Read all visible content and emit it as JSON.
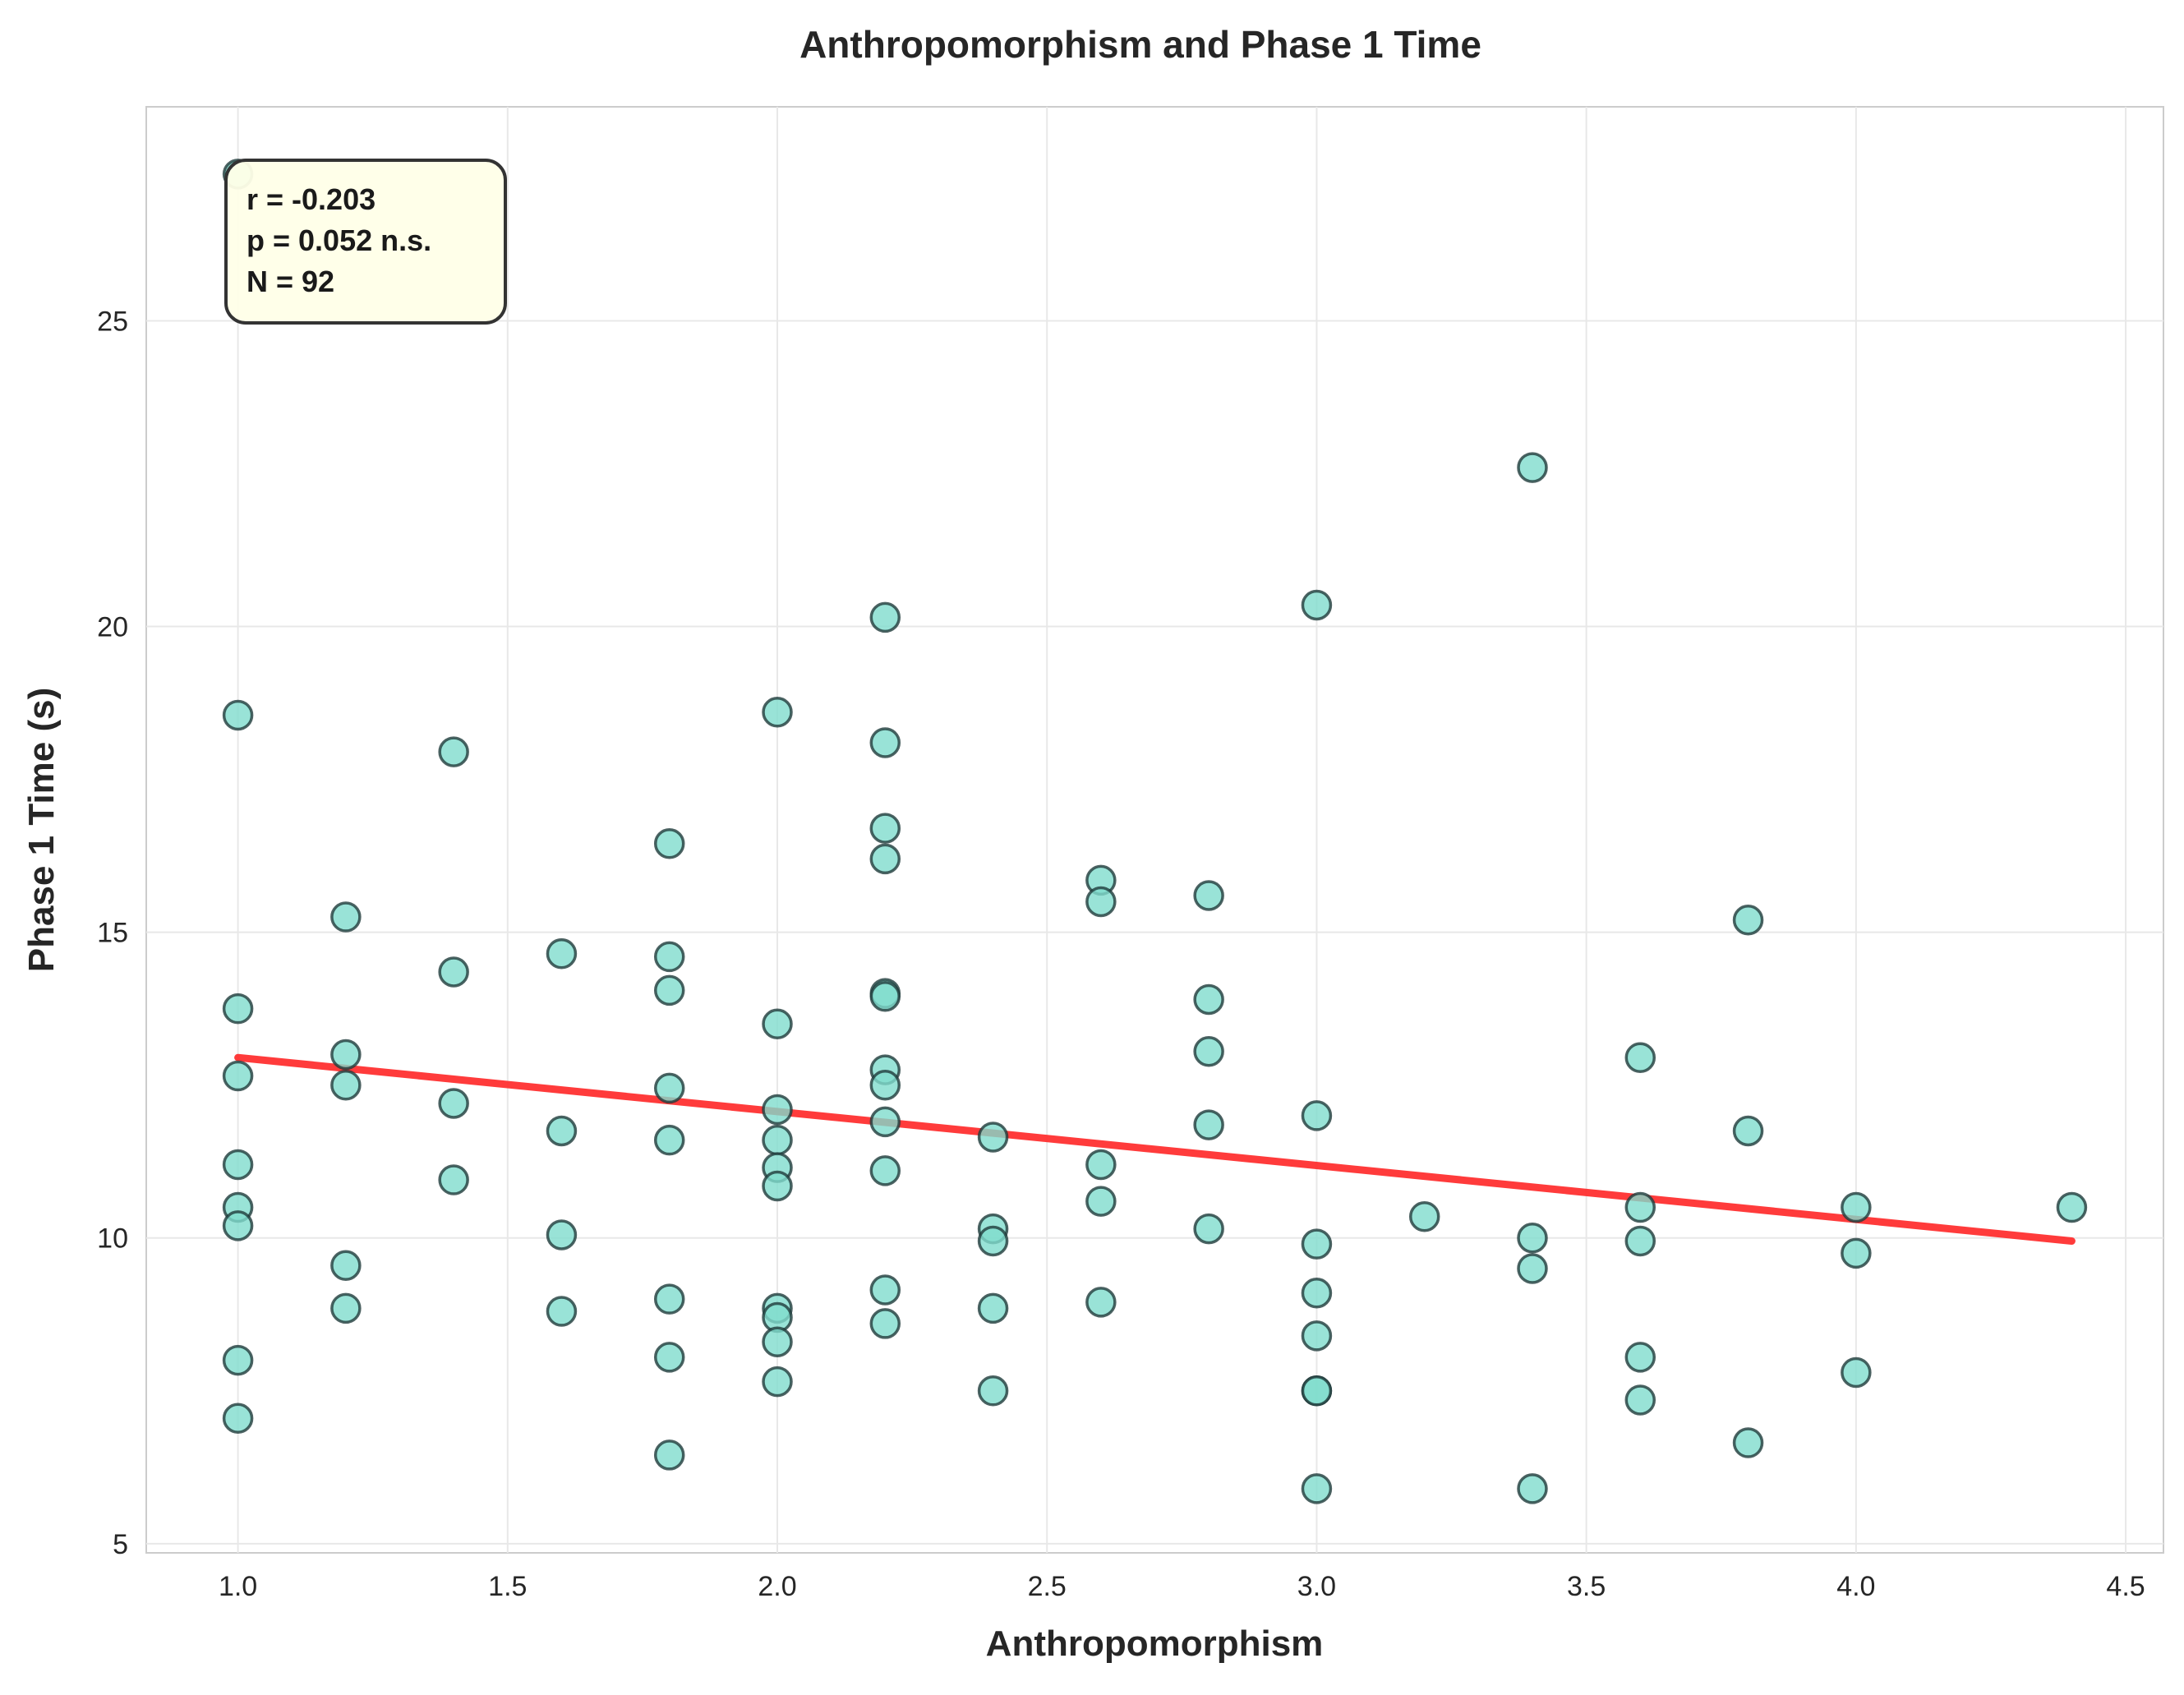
{
  "chart_data": {
    "type": "scatter",
    "title": "Anthropomorphism and Phase 1 Time",
    "xlabel": "Anthropomorphism",
    "ylabel": "Phase 1 Time (s)",
    "xlim": [
      0.83,
      4.57
    ],
    "ylim": [
      4.85,
      28.5
    ],
    "xticks": [
      "1.0",
      "1.5",
      "2.0",
      "2.5",
      "3.0",
      "3.5",
      "4.0",
      "4.5"
    ],
    "yticks": [
      "5",
      "10",
      "15",
      "20",
      "25"
    ],
    "grid": true,
    "stats": {
      "r": "r = -0.203",
      "p": "p = 0.052 n.s.",
      "n": "N = 92"
    },
    "trendline": {
      "x": [
        1.0,
        4.4
      ],
      "y": [
        12.95,
        9.95
      ]
    },
    "colors": {
      "point_fill": "#7fdccd",
      "point_stroke": "#1f3b3b",
      "trendline": "#ff2a2a",
      "stats_box_fill": "#ffffe8"
    },
    "points": [
      [
        1.0,
        27.4
      ],
      [
        1.0,
        18.55
      ],
      [
        1.0,
        13.75
      ],
      [
        1.0,
        12.65
      ],
      [
        1.0,
        11.2
      ],
      [
        1.0,
        10.5
      ],
      [
        1.0,
        10.2
      ],
      [
        1.0,
        8.0
      ],
      [
        1.0,
        7.05
      ],
      [
        1.2,
        15.25
      ],
      [
        1.2,
        13.0
      ],
      [
        1.2,
        12.5
      ],
      [
        1.2,
        9.55
      ],
      [
        1.2,
        8.85
      ],
      [
        1.4,
        17.95
      ],
      [
        1.4,
        14.35
      ],
      [
        1.4,
        12.2
      ],
      [
        1.4,
        10.95
      ],
      [
        1.6,
        14.65
      ],
      [
        1.6,
        11.75
      ],
      [
        1.6,
        10.05
      ],
      [
        1.6,
        8.8
      ],
      [
        1.8,
        16.45
      ],
      [
        1.8,
        14.6
      ],
      [
        1.8,
        14.05
      ],
      [
        1.8,
        12.45
      ],
      [
        1.8,
        11.6
      ],
      [
        1.8,
        9.0
      ],
      [
        1.8,
        8.05
      ],
      [
        1.8,
        6.45
      ],
      [
        2.0,
        18.6
      ],
      [
        2.0,
        13.5
      ],
      [
        2.0,
        12.1
      ],
      [
        2.0,
        11.6
      ],
      [
        2.0,
        11.15
      ],
      [
        2.0,
        10.85
      ],
      [
        2.0,
        8.85
      ],
      [
        2.0,
        8.7
      ],
      [
        2.0,
        8.3
      ],
      [
        2.0,
        7.65
      ],
      [
        2.2,
        20.15
      ],
      [
        2.2,
        18.1
      ],
      [
        2.2,
        16.7
      ],
      [
        2.2,
        16.2
      ],
      [
        2.2,
        14.0
      ],
      [
        2.2,
        13.95
      ],
      [
        2.2,
        12.75
      ],
      [
        2.2,
        12.5
      ],
      [
        2.2,
        11.9
      ],
      [
        2.2,
        11.1
      ],
      [
        2.2,
        9.15
      ],
      [
        2.2,
        8.6
      ],
      [
        2.4,
        11.65
      ],
      [
        2.4,
        10.15
      ],
      [
        2.4,
        9.95
      ],
      [
        2.4,
        8.85
      ],
      [
        2.4,
        7.5
      ],
      [
        2.6,
        15.85
      ],
      [
        2.6,
        15.5
      ],
      [
        2.6,
        11.2
      ],
      [
        2.6,
        10.6
      ],
      [
        2.6,
        8.95
      ],
      [
        2.8,
        15.6
      ],
      [
        2.8,
        13.9
      ],
      [
        2.8,
        13.05
      ],
      [
        2.8,
        11.85
      ],
      [
        2.8,
        10.15
      ],
      [
        3.0,
        20.35
      ],
      [
        3.0,
        12.0
      ],
      [
        3.0,
        9.9
      ],
      [
        3.0,
        9.1
      ],
      [
        3.0,
        8.4
      ],
      [
        3.0,
        7.5
      ],
      [
        3.0,
        7.5
      ],
      [
        3.0,
        5.9
      ],
      [
        3.2,
        10.35
      ],
      [
        3.4,
        22.6
      ],
      [
        3.4,
        10.0
      ],
      [
        3.4,
        9.5
      ],
      [
        3.4,
        5.9
      ],
      [
        3.6,
        12.95
      ],
      [
        3.6,
        10.5
      ],
      [
        3.6,
        9.95
      ],
      [
        3.6,
        8.05
      ],
      [
        3.6,
        7.35
      ],
      [
        3.8,
        15.2
      ],
      [
        3.8,
        11.75
      ],
      [
        3.8,
        6.65
      ],
      [
        4.0,
        10.5
      ],
      [
        4.0,
        9.75
      ],
      [
        4.0,
        7.8
      ],
      [
        4.4,
        10.5
      ]
    ]
  }
}
